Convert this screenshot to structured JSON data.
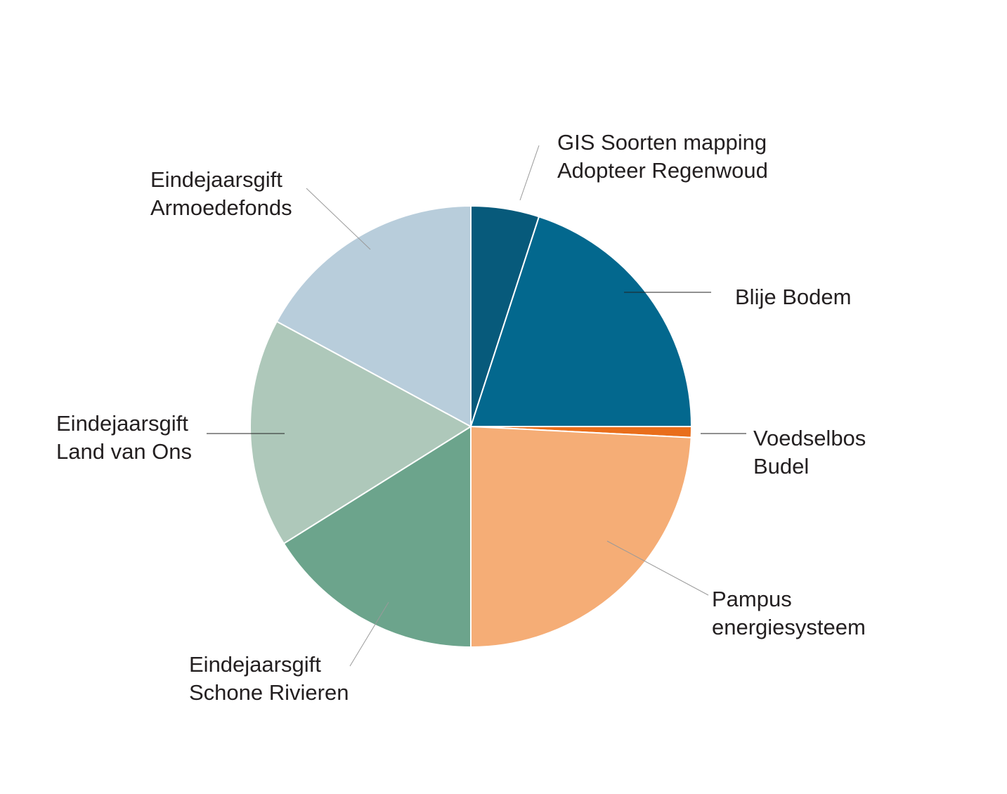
{
  "chart_data": {
    "type": "pie",
    "start_angle": "top",
    "direction": "clockwise",
    "slices": [
      {
        "label_lines": [
          "GIS Soorten mapping",
          "Adopteer Regenwoud"
        ],
        "value": 5.0,
        "color": "#075a7b"
      },
      {
        "label_lines": [
          "Blije Bodem"
        ],
        "value": 20.0,
        "color": "#03688e"
      },
      {
        "label_lines": [
          "Voedselbos",
          "Budel"
        ],
        "value": 0.8,
        "color": "#e96e1b"
      },
      {
        "label_lines": [
          "Pampus",
          "energiesysteem"
        ],
        "value": 24.2,
        "color": "#f5ad76"
      },
      {
        "label_lines": [
          "Eindejaarsgift",
          "Schone Rivieren"
        ],
        "value": 16.1,
        "color": "#6ca48c"
      },
      {
        "label_lines": [
          "Eindejaarsgift",
          "Land van Ons"
        ],
        "value": 16.8,
        "color": "#aec8ba"
      },
      {
        "label_lines": [
          "Eindejaarsgift",
          "Armoedefonds"
        ],
        "value": 17.1,
        "color": "#b8cddb"
      }
    ]
  }
}
